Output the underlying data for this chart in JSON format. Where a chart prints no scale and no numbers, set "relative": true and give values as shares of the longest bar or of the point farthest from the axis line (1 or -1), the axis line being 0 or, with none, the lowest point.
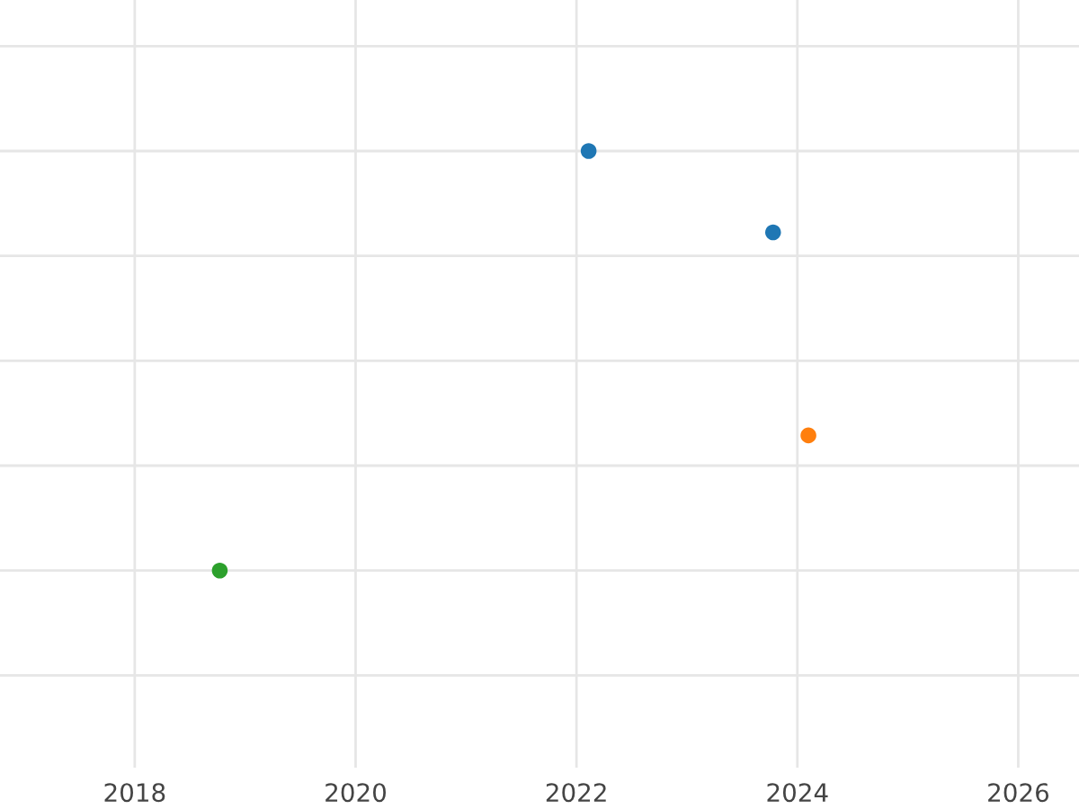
{
  "chart_data": {
    "type": "scatter",
    "relative": true,
    "xlim": [
      2016.78,
      2026.55
    ],
    "xticks": [
      2018,
      2020,
      2022,
      2024,
      2026
    ],
    "series": [
      {
        "color": "#1f77b4",
        "x": [
          2022.11,
          2023.78
        ],
        "values": [
          1,
          0.806
        ]
      },
      {
        "color": "#ff7f0e",
        "x": [
          2024.1
        ],
        "values": [
          0.322
        ]
      },
      {
        "color": "#2ca02c",
        "x": [
          2018.77
        ],
        "values": [
          0
        ]
      }
    ],
    "grid": true,
    "marker": "circle",
    "tick_labels": "x"
  }
}
